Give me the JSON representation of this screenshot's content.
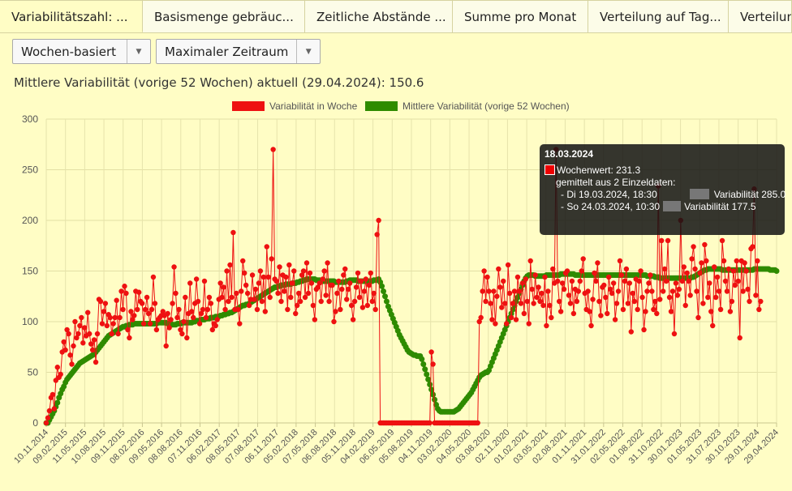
{
  "tabs": [
    {
      "label": "Variabilitätszahl: ...",
      "active": true
    },
    {
      "label": "Basismenge gebräuc...",
      "active": false
    },
    {
      "label": "Zeitliche Abstände ...",
      "active": false
    },
    {
      "label": "Summe pro Monat",
      "active": false
    },
    {
      "label": "Verteilung auf Tag...",
      "active": false
    },
    {
      "label": "Verteilun",
      "active": false
    }
  ],
  "controls": {
    "mode": "Wochen-basiert",
    "range": "Maximaler Zeitraum"
  },
  "summary": "Mittlere Variabilität (vorige 52 Wochen) aktuell (29.04.2024): 150.6",
  "tooltip": {
    "date": "18.03.2024",
    "line1": "Wochenwert: 231.3",
    "line2": "gemittelt aus 2 Einzeldaten:",
    "line3a": "- Di 19.03.2024, 18:30",
    "line3b": "Variabilität 285.0",
    "line4a": "- So 24.03.2024, 10:30",
    "line4b": "Variabilität 177.5"
  },
  "chart_data": {
    "type": "line",
    "ylim": [
      0,
      300
    ],
    "yticks": [
      0,
      50,
      100,
      150,
      200,
      250,
      300
    ],
    "xticks": [
      "10.11.2014",
      "09.02.2015",
      "11.05.2015",
      "10.08.2015",
      "09.11.2015",
      "08.02.2016",
      "09.05.2016",
      "08.08.2016",
      "07.11.2016",
      "06.02.2017",
      "08.05.2017",
      "07.08.2017",
      "06.11.2017",
      "05.02.2018",
      "07.05.2018",
      "06.08.2018",
      "05.11.2018",
      "04.02.2019",
      "06.05.2019",
      "05.08.2019",
      "04.11.2019",
      "03.02.2020",
      "04.05.2020",
      "03.08.2020",
      "02.11.2020",
      "01.02.2021",
      "03.05.2021",
      "02.08.2021",
      "01.11.2021",
      "31.01.2022",
      "02.05.2022",
      "01.08.2022",
      "31.10.2022",
      "30.01.2023",
      "01.05.2023",
      "31.07.2023",
      "30.10.2023",
      "29.01.2024",
      "29.04.2024"
    ],
    "grid": true,
    "legend_position": "top",
    "colors": {
      "weekly": "#ee1111",
      "average": "#2e8b00"
    },
    "series": [
      {
        "name": "Variabilität in Woche",
        "values": [
          0,
          5,
          12,
          25,
          28,
          14,
          42,
          55,
          45,
          48,
          70,
          80,
          72,
          92,
          88,
          67,
          58,
          76,
          100,
          84,
          88,
          96,
          104,
          79,
          94,
          86,
          109,
          88,
          78,
          72,
          82,
          60,
          88,
          122,
          120,
          98,
          110,
          118,
          96,
          107,
          104,
          88,
          98,
          104,
          121,
          88,
          104,
          130,
          112,
          135,
          128,
          92,
          84,
          110,
          102,
          106,
          130,
          112,
          129,
          120,
          118,
          98,
          112,
          124,
          108,
          98,
          112,
          144,
          118,
          92,
          102,
          104,
          106,
          110,
          106,
          76,
          108,
          94,
          102,
          118,
          154,
          128,
          104,
          112,
          92,
          88,
          100,
          124,
          84,
          108,
          138,
          110,
          104,
          118,
          142,
          120,
          98,
          108,
          112,
          140,
          104,
          112,
          124,
          118,
          92,
          98,
          96,
          102,
          122,
          138,
          124,
          134,
          112,
          150,
          120,
          156,
          124,
          188,
          112,
          128,
          112,
          98,
          130,
          160,
          148,
          136,
          128,
          116,
          122,
          146,
          122,
          132,
          112,
          138,
          150,
          120,
          144,
          110,
          174,
          144,
          124,
          162,
          270,
          142,
          140,
          128,
          154,
          120,
          146,
          130,
          144,
          112,
          156,
          124,
          138,
          150,
          108,
          116,
          128,
          120,
          146,
          150,
          124,
          158,
          128,
          148,
          138,
          116,
          102,
          132,
          134,
          138,
          120,
          142,
          150,
          126,
          158,
          120,
          136,
          136,
          100,
          110,
          128,
          140,
          112,
          132,
          146,
          152,
          122,
          132,
          138,
          116,
          102,
          120,
          134,
          148,
          124,
          140,
          114,
          130,
          142,
          116,
          136,
          148,
          120,
          128,
          112,
          186,
          200,
          0,
          0,
          0,
          0,
          0,
          0,
          0,
          0,
          0,
          0,
          0,
          0,
          0,
          0,
          0,
          0,
          0,
          0,
          0,
          0,
          0,
          0,
          0,
          0,
          0,
          0,
          0,
          0,
          0,
          0,
          0,
          0,
          70,
          58,
          0,
          0,
          0,
          0,
          0,
          0,
          0,
          0,
          0,
          0,
          0,
          0,
          0,
          0,
          0,
          0,
          0,
          0,
          0,
          0,
          0,
          0,
          0,
          0,
          0,
          0,
          0,
          0,
          100,
          104,
          130,
          150,
          120,
          144,
          130,
          118,
          102,
          130,
          98,
          125,
          152,
          134,
          114,
          140,
          118,
          98,
          156,
          128,
          104,
          118,
          130,
          102,
          144,
          130,
          118,
          138,
          108,
          142,
          120,
          98,
          160,
          132,
          118,
          146,
          124,
          134,
          120,
          128,
          116,
          144,
          96,
          130,
          116,
          104,
          152,
          138,
          270,
          140,
          120,
          110,
          138,
          132,
          148,
          150,
          126,
          118,
          140,
          108,
          132,
          120,
          130,
          140,
          150,
          162,
          128,
          112,
          130,
          110,
          96,
          122,
          148,
          140,
          158,
          120,
          106,
          134,
          136,
          124,
          108,
          144,
          132,
          128,
          138,
          102,
          118,
          130,
          160,
          146,
          112,
          140,
          152,
          118,
          138,
          90,
          128,
          120,
          142,
          112,
          140,
          150,
          124,
          92,
          110,
          130,
          138,
          146,
          130,
          112,
          120,
          108,
          234,
          122,
          180,
          130,
          152,
          140,
          180,
          124,
          110,
          130,
          88,
          138,
          126,
          132,
          200,
          140,
          154,
          116,
          148,
          140,
          126,
          162,
          174,
          152,
          130,
          104,
          148,
          158,
          118,
          176,
          160,
          124,
          138,
          110,
          96,
          154,
          124,
          144,
          130,
          112,
          180,
          160,
          140,
          130,
          152,
          110,
          120,
          150,
          136,
          160,
          140,
          84,
          160,
          130,
          158,
          150,
          132,
          120,
          172,
          174,
          231,
          126,
          160,
          112,
          120
        ]
      },
      {
        "name": "Mittlere Variabilität (vorige 52 Wochen)",
        "values": [
          0,
          0,
          3,
          6,
          9,
          12,
          16,
          20,
          25,
          29,
          33,
          36,
          40,
          43,
          45,
          47,
          49,
          51,
          53,
          55,
          57,
          59,
          60,
          61,
          62,
          63,
          64,
          65,
          66,
          67,
          68,
          70,
          72,
          74,
          76,
          78,
          80,
          82,
          84,
          86,
          87,
          88,
          89,
          90,
          91,
          92,
          93,
          94,
          95,
          95,
          96,
          96,
          97,
          97,
          97,
          98,
          98,
          98,
          98,
          98,
          98,
          98,
          98,
          98,
          98,
          98,
          98,
          98,
          98,
          98,
          99,
          99,
          99,
          99,
          99,
          99,
          98,
          98,
          98,
          97,
          97,
          97,
          98,
          98,
          98,
          99,
          99,
          99,
          99,
          99,
          99,
          99,
          100,
          100,
          101,
          101,
          101,
          102,
          102,
          102,
          103,
          103,
          103,
          104,
          104,
          104,
          105,
          105,
          105,
          106,
          106,
          107,
          107,
          108,
          108,
          109,
          109,
          110,
          111,
          112,
          113,
          114,
          115,
          116,
          116,
          117,
          117,
          118,
          119,
          120,
          121,
          122,
          123,
          124,
          125,
          126,
          127,
          128,
          129,
          130,
          131,
          132,
          133,
          134,
          134,
          135,
          135,
          136,
          136,
          136,
          137,
          137,
          137,
          137,
          138,
          138,
          138,
          139,
          139,
          140,
          140,
          141,
          141,
          142,
          142,
          142,
          142,
          142,
          142,
          141,
          141,
          141,
          140,
          140,
          140,
          140,
          140,
          140,
          140,
          140,
          140,
          139,
          139,
          139,
          139,
          139,
          139,
          139,
          140,
          140,
          141,
          141,
          141,
          141,
          141,
          140,
          140,
          140,
          140,
          140,
          140,
          140,
          140,
          140,
          140,
          141,
          141,
          141,
          142,
          139,
          135,
          130,
          125,
          120,
          115,
          111,
          107,
          103,
          99,
          95,
          91,
          87,
          84,
          81,
          78,
          75,
          72,
          70,
          69,
          68,
          67,
          67,
          66,
          66,
          66,
          63,
          58,
          53,
          48,
          43,
          38,
          33,
          28,
          23,
          18,
          14,
          12,
          11,
          11,
          11,
          11,
          11,
          11,
          11,
          11,
          11,
          12,
          13,
          14,
          16,
          18,
          20,
          22,
          24,
          26,
          28,
          30,
          33,
          36,
          39,
          42,
          45,
          47,
          48,
          49,
          50,
          50,
          52,
          56,
          60,
          64,
          68,
          72,
          76,
          80,
          84,
          88,
          92,
          96,
          100,
          104,
          108,
          112,
          116,
          120,
          124,
          128,
          132,
          136,
          140,
          143,
          145,
          146,
          146,
          146,
          146,
          145,
          145,
          145,
          145,
          145,
          145,
          145,
          146,
          146,
          146,
          146,
          146,
          146,
          146,
          146,
          146,
          147,
          147,
          147,
          147,
          147,
          147,
          147,
          147,
          147,
          146,
          146,
          146,
          146,
          146,
          146,
          146,
          146,
          146,
          146,
          146,
          146,
          146,
          146,
          146,
          146,
          146,
          146,
          146,
          146,
          146,
          146,
          146,
          146,
          146,
          146,
          146,
          146,
          146,
          146,
          146,
          146,
          146,
          146,
          146,
          146,
          146,
          146,
          146,
          146,
          146,
          146,
          146,
          146,
          146,
          145,
          145,
          145,
          145,
          145,
          144,
          144,
          144,
          143,
          143,
          143,
          143,
          143,
          143,
          143,
          143,
          143,
          143,
          143,
          143,
          143,
          143,
          143,
          143,
          143,
          143,
          143,
          143,
          144,
          144,
          145,
          146,
          147,
          148,
          149,
          150,
          151,
          151,
          152,
          152,
          152,
          152,
          152,
          152,
          152,
          152,
          152,
          151,
          151,
          151,
          151,
          151,
          151,
          151,
          151,
          151,
          151,
          151,
          151,
          151,
          151,
          151,
          151,
          151,
          151,
          151,
          151,
          152,
          152,
          152,
          152,
          152,
          152,
          152,
          152,
          152,
          152,
          151,
          151,
          151,
          151,
          150
        ]
      }
    ]
  }
}
